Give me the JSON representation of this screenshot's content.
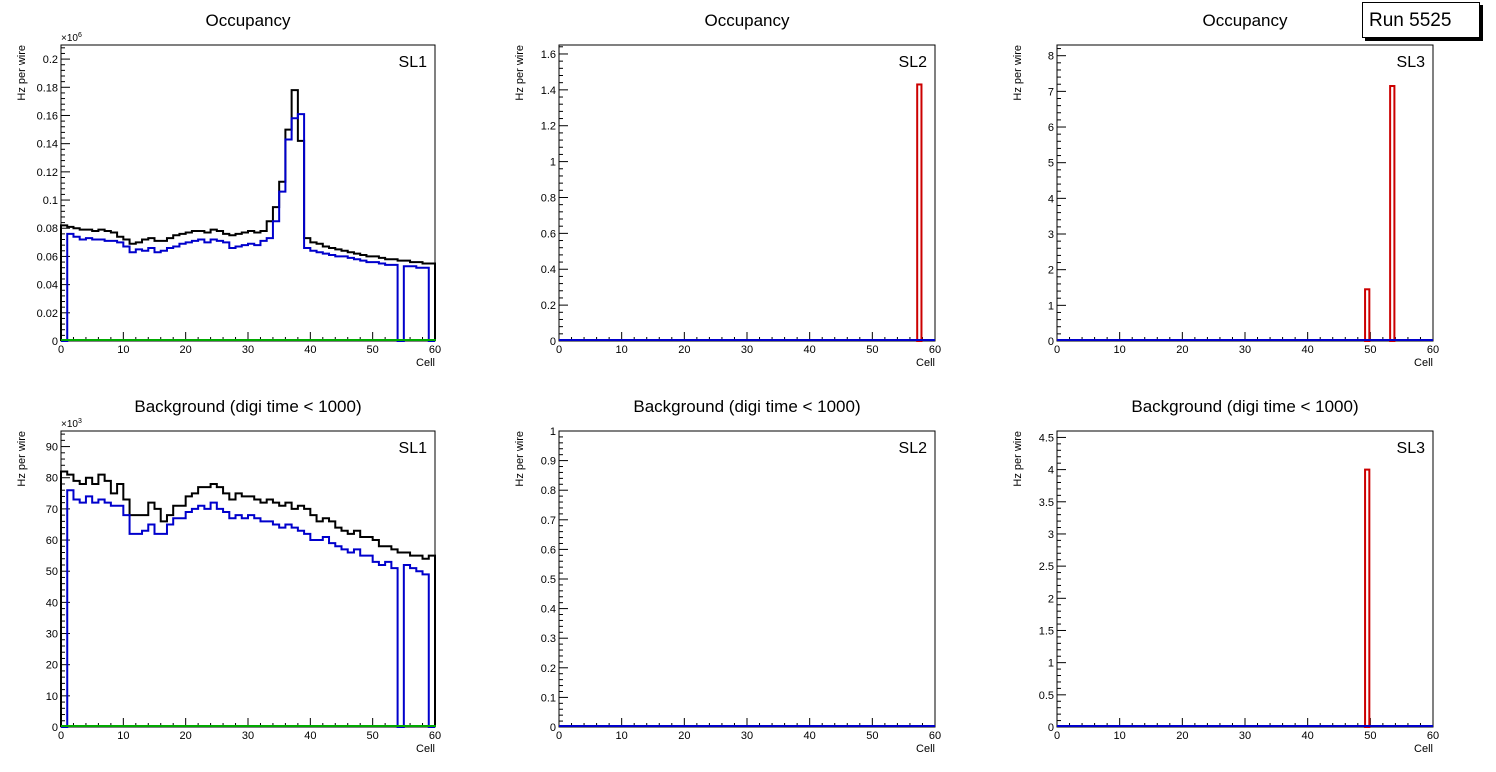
{
  "run_label": "Run 5525",
  "colors": {
    "total": "#000000",
    "good": "#0000cc",
    "noise": "#cc0000",
    "zero": "#00aa00"
  },
  "chart_data": [
    {
      "type": "histogram",
      "title": "Occupancy",
      "label": "SL1",
      "xlabel": "Cell",
      "ylabel": "Hz per wire",
      "xlim": [
        0,
        60
      ],
      "ylim": [
        0,
        0.21
      ],
      "yticks": [
        0,
        0.02,
        0.04,
        0.06,
        0.08,
        0.1,
        0.12,
        0.14,
        0.16,
        0.18,
        0.2
      ],
      "exponent_base": "×10",
      "exponent": "6",
      "series": [
        {
          "name": "total",
          "color": "#000000",
          "values": [
            0.082,
            0.081,
            0.08,
            0.079,
            0.079,
            0.078,
            0.079,
            0.078,
            0.077,
            0.074,
            0.072,
            0.069,
            0.07,
            0.072,
            0.073,
            0.071,
            0.071,
            0.073,
            0.075,
            0.076,
            0.077,
            0.078,
            0.078,
            0.077,
            0.079,
            0.078,
            0.076,
            0.075,
            0.076,
            0.077,
            0.078,
            0.077,
            0.078,
            0.085,
            0.095,
            0.113,
            0.15,
            0.178,
            0.142,
            0.073,
            0.07,
            0.069,
            0.067,
            0.066,
            0.065,
            0.064,
            0.063,
            0.062,
            0.061,
            0.06,
            0.06,
            0.059,
            0.058,
            0.058,
            0.057,
            0.057,
            0.056,
            0.056,
            0.055,
            0.055
          ]
        },
        {
          "name": "good",
          "color": "#0000cc",
          "values": [
            0,
            0.076,
            0.074,
            0.072,
            0.073,
            0.072,
            0.072,
            0.071,
            0.071,
            0.07,
            0.067,
            0.063,
            0.065,
            0.064,
            0.066,
            0.063,
            0.064,
            0.066,
            0.067,
            0.069,
            0.07,
            0.071,
            0.072,
            0.07,
            0.072,
            0.071,
            0.07,
            0.066,
            0.067,
            0.068,
            0.069,
            0.068,
            0.071,
            0.073,
            0.085,
            0.106,
            0.143,
            0.158,
            0.161,
            0.066,
            0.064,
            0.063,
            0.062,
            0.061,
            0.06,
            0.06,
            0.059,
            0.058,
            0.057,
            0.056,
            0.056,
            0.055,
            0.054,
            0.054,
            0.0,
            0.053,
            0.053,
            0.052,
            0.052,
            0.0
          ]
        },
        {
          "name": "zero",
          "color": "#00aa00",
          "values": []
        }
      ]
    },
    {
      "type": "histogram",
      "title": "Occupancy",
      "label": "SL2",
      "xlabel": "Cell",
      "ylabel": "Hz per wire",
      "xlim": [
        0,
        60
      ],
      "ylim": [
        0,
        1.65
      ],
      "yticks": [
        0,
        0.2,
        0.4,
        0.6,
        0.8,
        1,
        1.2,
        1.4,
        1.6
      ],
      "exponent_base": "",
      "exponent": "",
      "series": [
        {
          "name": "noise",
          "color": "#cc0000",
          "values": [
            0,
            0,
            0,
            0,
            0,
            0,
            0,
            0,
            0,
            0,
            0,
            0,
            0,
            0,
            0,
            0,
            0,
            0,
            0,
            0,
            0,
            0,
            0,
            0,
            0,
            0,
            0,
            0,
            0,
            0,
            0,
            0,
            0,
            0,
            0,
            0,
            0,
            0,
            0,
            0,
            0,
            0,
            0,
            0,
            0,
            0,
            0,
            0,
            0,
            0,
            0,
            0,
            0,
            0,
            0,
            0,
            0,
            1.43,
            0,
            0
          ]
        },
        {
          "name": "good",
          "color": "#0000cc",
          "values": []
        }
      ]
    },
    {
      "type": "histogram",
      "title": "Occupancy",
      "label": "SL3",
      "xlabel": "Cell",
      "ylabel": "Hz per wire",
      "xlim": [
        0,
        60
      ],
      "ylim": [
        0,
        8.3
      ],
      "yticks": [
        0,
        1,
        2,
        3,
        4,
        5,
        6,
        7,
        8
      ],
      "exponent_base": "",
      "exponent": "",
      "series": [
        {
          "name": "noise",
          "color": "#cc0000",
          "values": [
            0,
            0,
            0,
            0,
            0,
            0,
            0,
            0,
            0,
            0,
            0,
            0,
            0,
            0,
            0,
            0,
            0,
            0,
            0,
            0,
            0,
            0,
            0,
            0,
            0,
            0,
            0,
            0,
            0,
            0,
            0,
            0,
            0,
            0,
            0,
            0,
            0,
            0,
            0,
            0,
            0,
            0,
            0,
            0,
            0,
            0,
            0,
            0,
            0,
            1.45,
            0,
            0,
            0,
            7.15,
            0,
            0,
            0,
            0,
            0,
            0
          ]
        },
        {
          "name": "good",
          "color": "#0000cc",
          "values": []
        }
      ]
    },
    {
      "type": "histogram",
      "title": "Background (digi time < 1000)",
      "label": "SL1",
      "xlabel": "Cell",
      "ylabel": "Hz per wire",
      "xlim": [
        0,
        60
      ],
      "ylim": [
        0,
        95
      ],
      "yticks": [
        0,
        10,
        20,
        30,
        40,
        50,
        60,
        70,
        80,
        90
      ],
      "exponent_base": "×10",
      "exponent": "3",
      "series": [
        {
          "name": "total",
          "color": "#000000",
          "values": [
            82,
            81,
            79,
            78,
            80,
            78,
            81,
            79,
            75,
            78,
            73,
            68,
            68,
            68,
            72,
            70,
            66,
            68,
            71,
            71,
            74,
            75,
            77,
            77,
            78,
            77,
            75,
            73,
            75,
            74,
            74,
            73,
            72,
            73,
            72,
            71,
            72,
            70,
            71,
            70,
            68,
            66,
            67,
            66,
            64,
            63,
            62,
            63,
            61,
            61,
            60,
            58,
            58,
            57,
            56,
            56,
            55,
            55,
            54,
            55
          ]
        },
        {
          "name": "good",
          "color": "#0000cc",
          "values": [
            0,
            76,
            73,
            72,
            74,
            72,
            73,
            72,
            71,
            71,
            68,
            62,
            62,
            63,
            65,
            62,
            62,
            65,
            67,
            67,
            69,
            70,
            71,
            70,
            72,
            70,
            69,
            67,
            68,
            67,
            68,
            67,
            66,
            66,
            65,
            64,
            65,
            64,
            63,
            62,
            60,
            60,
            61,
            59,
            58,
            57,
            56,
            57,
            55,
            55,
            53,
            52,
            53,
            51,
            0,
            52,
            51,
            50,
            49,
            0
          ]
        },
        {
          "name": "zero",
          "color": "#00aa00",
          "values": []
        }
      ]
    },
    {
      "type": "histogram",
      "title": "Background (digi time < 1000)",
      "label": "SL2",
      "xlabel": "Cell",
      "ylabel": "Hz per wire",
      "xlim": [
        0,
        60
      ],
      "ylim": [
        0,
        1
      ],
      "yticks": [
        0,
        0.1,
        0.2,
        0.3,
        0.4,
        0.5,
        0.6,
        0.7,
        0.8,
        0.9,
        1
      ],
      "exponent_base": "",
      "exponent": "",
      "series": [
        {
          "name": "good",
          "color": "#0000cc",
          "values": []
        }
      ]
    },
    {
      "type": "histogram",
      "title": "Background (digi time < 1000)",
      "label": "SL3",
      "xlabel": "Cell",
      "ylabel": "Hz per wire",
      "xlim": [
        0,
        60
      ],
      "ylim": [
        0,
        4.6
      ],
      "yticks": [
        0,
        0.5,
        1,
        1.5,
        2,
        2.5,
        3,
        3.5,
        4,
        4.5
      ],
      "exponent_base": "",
      "exponent": "",
      "series": [
        {
          "name": "noise",
          "color": "#cc0000",
          "values": [
            0,
            0,
            0,
            0,
            0,
            0,
            0,
            0,
            0,
            0,
            0,
            0,
            0,
            0,
            0,
            0,
            0,
            0,
            0,
            0,
            0,
            0,
            0,
            0,
            0,
            0,
            0,
            0,
            0,
            0,
            0,
            0,
            0,
            0,
            0,
            0,
            0,
            0,
            0,
            0,
            0,
            0,
            0,
            0,
            0,
            0,
            0,
            0,
            0,
            4.0,
            0,
            0,
            0,
            0,
            0,
            0,
            0,
            0,
            0,
            0
          ]
        },
        {
          "name": "good",
          "color": "#0000cc",
          "values": []
        }
      ]
    }
  ]
}
